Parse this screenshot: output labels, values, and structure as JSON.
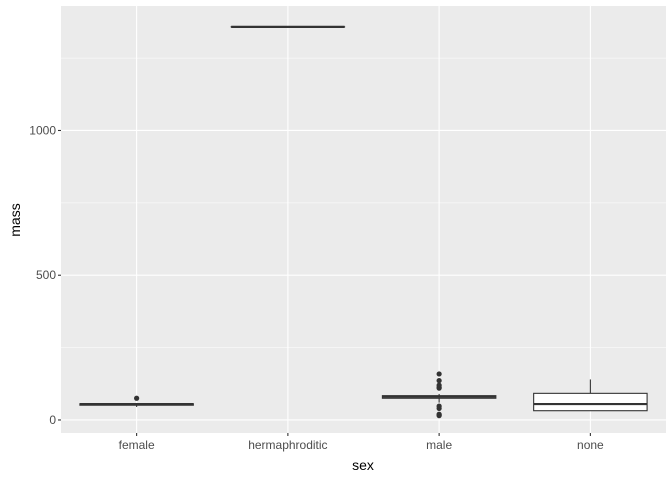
{
  "chart_data": {
    "type": "boxplot",
    "xlabel": "sex",
    "ylabel": "mass",
    "categories": [
      "female",
      "hermaphroditic",
      "male",
      "none"
    ],
    "ylim": [
      -45,
      1430
    ],
    "yticks": [
      0,
      500,
      1000
    ],
    "ytick_labels": [
      "0",
      "500",
      "1000"
    ],
    "grid": true,
    "colors": {
      "panel_background": "#ebebeb",
      "grid": "#ffffff",
      "box_fill": "#ffffff",
      "box_line": "#333333",
      "tick_text": "#4d4d4d",
      "axis_title": "#000000"
    },
    "boxes": [
      {
        "category": "female",
        "lower_whisker": 45,
        "q1": 51,
        "median": 55,
        "q3": 56,
        "upper_whisker": 57,
        "outliers": [
          75
        ]
      },
      {
        "category": "hermaphroditic",
        "lower_whisker": 1358,
        "q1": 1358,
        "median": 1358,
        "q3": 1358,
        "upper_whisker": 1358,
        "outliers": []
      },
      {
        "category": "male",
        "lower_whisker": 60,
        "q1": 75,
        "median": 80,
        "q3": 84,
        "upper_whisker": 90,
        "outliers": [
          15,
          17,
          20,
          40,
          48,
          110,
          113,
          120,
          136,
          159
        ]
      },
      {
        "category": "none",
        "lower_whisker": 32,
        "q1": 32,
        "median": 55,
        "q3": 92,
        "upper_whisker": 140,
        "outliers": []
      }
    ]
  }
}
